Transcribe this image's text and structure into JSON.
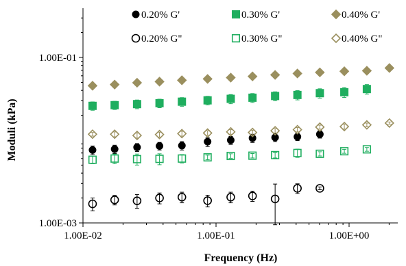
{
  "chart_data": {
    "type": "scatter",
    "title": "",
    "xlabel": "Frequency (Hz)",
    "ylabel": "Moduli (kPa)",
    "x_scale": "log",
    "y_scale": "log",
    "xlim": [
      0.01,
      2.5
    ],
    "ylim": [
      0.001,
      0.32
    ],
    "x_ticks": [
      0.01,
      0.1,
      1
    ],
    "x_tick_labels": [
      "1.00E-02",
      "1.00E-01",
      "1.00E+00"
    ],
    "y_ticks": [
      0.001,
      0.1
    ],
    "y_tick_labels": [
      "1.00E-03",
      "1.00E-01"
    ],
    "grid": false,
    "legend_position": "top",
    "series": [
      {
        "name": "0.20% G'",
        "marker": "circle",
        "filled": true,
        "color": "#000000",
        "x": [
          0.0118,
          0.0173,
          0.0255,
          0.0376,
          0.0554,
          0.0864,
          0.129,
          0.188,
          0.278,
          0.409,
          0.603
        ],
        "y": [
          0.0076,
          0.0078,
          0.0082,
          0.0085,
          0.0086,
          0.0096,
          0.01,
          0.0106,
          0.0108,
          0.011,
          0.0118
        ],
        "err": [
          0.0009,
          0.0009,
          0.0009,
          0.0009,
          0.001,
          0.0012,
          0.0011,
          0.0012,
          0.0012,
          0.0011,
          0.0012
        ]
      },
      {
        "name": "0.30% G'",
        "marker": "square",
        "filled": true,
        "color": "#1fae5f",
        "x": [
          0.0118,
          0.0173,
          0.0255,
          0.0376,
          0.0554,
          0.0864,
          0.129,
          0.188,
          0.278,
          0.409,
          0.603,
          0.921,
          1.36
        ],
        "y": [
          0.026,
          0.0265,
          0.0273,
          0.028,
          0.0292,
          0.0303,
          0.0316,
          0.0326,
          0.0342,
          0.0352,
          0.037,
          0.038,
          0.0415
        ],
        "err": [
          0.003,
          0.003,
          0.0033,
          0.0033,
          0.0035,
          0.0036,
          0.004,
          0.004,
          0.0042,
          0.0045,
          0.0048,
          0.0052,
          0.0055
        ]
      },
      {
        "name": "0.40% G'",
        "marker": "diamond",
        "filled": true,
        "color": "#9a8f5e",
        "x": [
          0.0118,
          0.0173,
          0.0255,
          0.0376,
          0.0554,
          0.0864,
          0.129,
          0.188,
          0.278,
          0.409,
          0.603,
          0.921,
          1.36,
          2.01
        ],
        "y": [
          0.0455,
          0.047,
          0.0495,
          0.051,
          0.053,
          0.055,
          0.057,
          0.059,
          0.0615,
          0.064,
          0.066,
          0.068,
          0.069,
          0.0745
        ],
        "err": [
          0.0012,
          0.0012,
          0.0013,
          0.0013,
          0.0014,
          0.0014,
          0.0015,
          0.0015,
          0.0016,
          0.0016,
          0.0017,
          0.0017,
          0.0017,
          0.0018
        ]
      },
      {
        "name": "0.20% G\"",
        "marker": "circle",
        "filled": false,
        "color": "#000000",
        "x": [
          0.0118,
          0.0173,
          0.0255,
          0.0376,
          0.0554,
          0.0864,
          0.129,
          0.188,
          0.278,
          0.409,
          0.603
        ],
        "y": [
          0.0017,
          0.0019,
          0.00185,
          0.002,
          0.00205,
          0.00186,
          0.00205,
          0.00212,
          0.00195,
          0.00262,
          0.00262
        ],
        "err": [
          0.0003,
          0.00025,
          0.00035,
          0.0003,
          0.0003,
          0.0003,
          0.0003,
          0.0003,
          0.001,
          0.00035,
          0.0001
        ]
      },
      {
        "name": "0.30% G\"",
        "marker": "square",
        "filled": false,
        "color": "#1fae5f",
        "x": [
          0.0118,
          0.0173,
          0.0255,
          0.0376,
          0.0554,
          0.0864,
          0.129,
          0.188,
          0.278,
          0.409,
          0.603,
          0.921,
          1.36
        ],
        "y": [
          0.0058,
          0.006,
          0.0059,
          0.00595,
          0.006,
          0.0062,
          0.00645,
          0.0065,
          0.0066,
          0.007,
          0.00685,
          0.00735,
          0.00775
        ],
        "err": [
          0.0006,
          0.0008,
          0.0009,
          0.0009,
          0.0007,
          0.0004,
          0.0004,
          0.0004,
          0.0005,
          0.0008,
          0.0004,
          0.0004,
          0.0004
        ]
      },
      {
        "name": "0.40% G\"",
        "marker": "diamond",
        "filled": false,
        "color": "#9a8f5e",
        "x": [
          0.0118,
          0.0173,
          0.0255,
          0.0376,
          0.0554,
          0.0864,
          0.129,
          0.188,
          0.278,
          0.409,
          0.603,
          0.921,
          1.36,
          2.01
        ],
        "y": [
          0.0118,
          0.0118,
          0.0114,
          0.0117,
          0.012,
          0.0122,
          0.0126,
          0.0124,
          0.013,
          0.0134,
          0.0144,
          0.0146,
          0.0153,
          0.0161
        ],
        "err": [
          0.0006,
          0.0008,
          0.0008,
          0.0008,
          0.0008,
          0.0008,
          0.0008,
          0.0008,
          0.0008,
          0.0008,
          0.0008,
          0.001,
          0.0008,
          0.0005
        ]
      }
    ]
  }
}
